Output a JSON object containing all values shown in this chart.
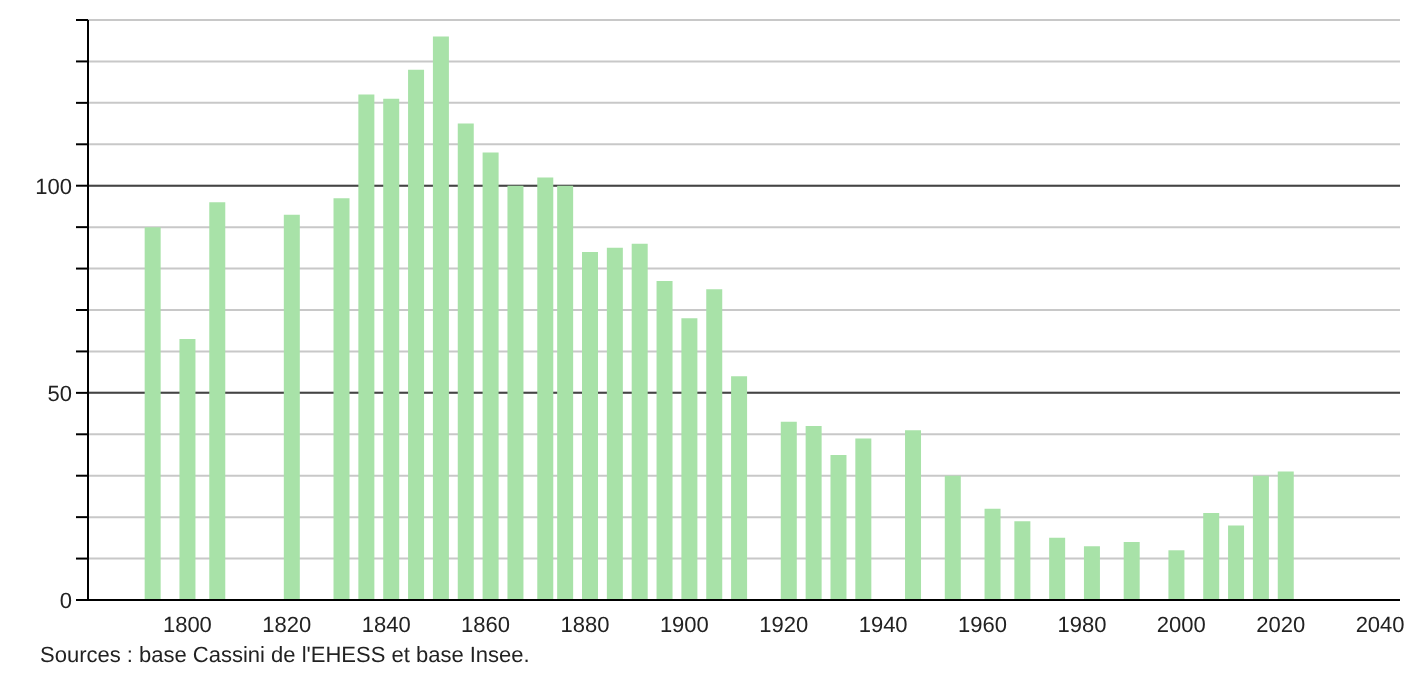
{
  "chart_data": {
    "type": "bar",
    "x": [
      1793,
      1800,
      1806,
      1821,
      1831,
      1836,
      1841,
      1846,
      1851,
      1856,
      1861,
      1866,
      1872,
      1876,
      1881,
      1886,
      1891,
      1896,
      1901,
      1906,
      1911,
      1921,
      1926,
      1931,
      1936,
      1946,
      1954,
      1962,
      1968,
      1975,
      1982,
      1990,
      1999,
      2006,
      2011,
      2016,
      2021
    ],
    "values": [
      90,
      63,
      96,
      93,
      97,
      122,
      121,
      128,
      136,
      115,
      108,
      100,
      102,
      100,
      84,
      85,
      86,
      77,
      68,
      75,
      54,
      43,
      42,
      35,
      39,
      41,
      30,
      22,
      19,
      15,
      13,
      14,
      12,
      21,
      18,
      30,
      31
    ],
    "color": "#a8e2a8",
    "xlim": [
      1780,
      2044
    ],
    "xticks": [
      1800,
      1820,
      1840,
      1860,
      1880,
      1900,
      1920,
      1940,
      1960,
      1980,
      2000,
      2020,
      2040
    ],
    "ylim": [
      0,
      140
    ],
    "yticks": [
      0,
      {
        "value": 10,
        "label": null
      },
      {
        "value": 20,
        "label": null
      },
      {
        "value": 30,
        "label": null
      },
      {
        "value": 40,
        "label": null
      },
      50,
      {
        "value": 60,
        "label": null
      },
      {
        "value": 70,
        "label": null
      },
      {
        "value": 80,
        "label": null
      },
      {
        "value": 90,
        "label": null
      },
      100,
      {
        "value": 110,
        "label": null
      },
      {
        "value": 120,
        "label": null
      },
      {
        "value": 130,
        "label": null
      },
      {
        "value": 140,
        "label": null
      }
    ],
    "grid": "y",
    "annotations": [
      "Sources : base Cassini de l'EHESS et base Insee."
    ]
  }
}
